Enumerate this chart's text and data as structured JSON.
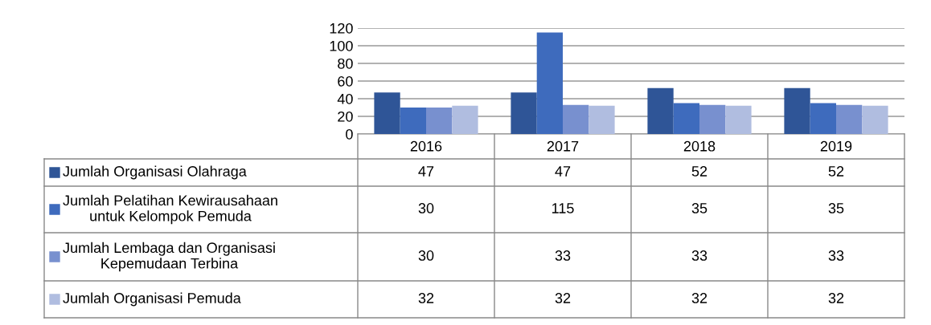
{
  "chart_data": {
    "type": "bar",
    "categories": [
      "2016",
      "2017",
      "2018",
      "2019"
    ],
    "series": [
      {
        "name": "Jumlah Organisasi Olahraga",
        "color": "#2f5597",
        "values": [
          47,
          47,
          52,
          52
        ]
      },
      {
        "name": "Jumlah Pelatihan Kewirausahaan\nuntuk Kelompok Pemuda",
        "color": "#3e6bbd",
        "values": [
          30,
          115,
          35,
          35
        ]
      },
      {
        "name": "Jumlah Lembaga dan Organisasi\nKepemudaan Terbina",
        "color": "#7890cf",
        "values": [
          30,
          33,
          33,
          33
        ]
      },
      {
        "name": "Jumlah Organisasi Pemuda",
        "color": "#b0bde0",
        "values": [
          32,
          32,
          32,
          32
        ]
      }
    ],
    "ylim": [
      0,
      120
    ],
    "yticks": [
      0,
      20,
      40,
      60,
      80,
      100,
      120
    ],
    "grid": "y",
    "legend": "bottom",
    "data_labels": true
  }
}
